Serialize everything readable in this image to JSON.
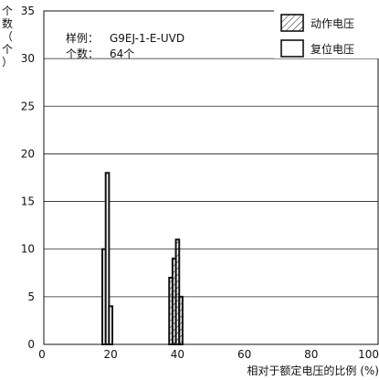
{
  "chart_data": {
    "type": "histogram",
    "title": "",
    "sample_label": "样例：",
    "sample_value": "G9EJ-1-E-UVD",
    "count_label": "个数：",
    "count_value": "64个",
    "ylabel": "个数（个）",
    "xlabel": "相对于额定电压的比例 (%)",
    "xlim": [
      0,
      100
    ],
    "ylim": [
      0,
      35
    ],
    "x_ticks": [
      "0",
      "20",
      "40",
      "60",
      "80",
      "100"
    ],
    "y_ticks": [
      "0",
      "5",
      "10",
      "15",
      "20",
      "25",
      "30",
      "35"
    ],
    "grid": true,
    "legend_position": "top-right",
    "series": [
      {
        "name": "动作电压",
        "fill": "hatched",
        "bins": [
          {
            "x0": 37.5,
            "x1": 38.5,
            "y": 7
          },
          {
            "x0": 38.5,
            "x1": 39.5,
            "y": 9
          },
          {
            "x0": 39.5,
            "x1": 40.5,
            "y": 11
          },
          {
            "x0": 40.5,
            "x1": 41.5,
            "y": 5
          }
        ]
      },
      {
        "name": "复位电压",
        "fill": "open",
        "bins": [
          {
            "x0": 17.5,
            "x1": 18.5,
            "y": 10
          },
          {
            "x0": 18.5,
            "x1": 19.5,
            "y": 18
          },
          {
            "x0": 19.5,
            "x1": 20.5,
            "y": 4
          }
        ]
      }
    ]
  }
}
